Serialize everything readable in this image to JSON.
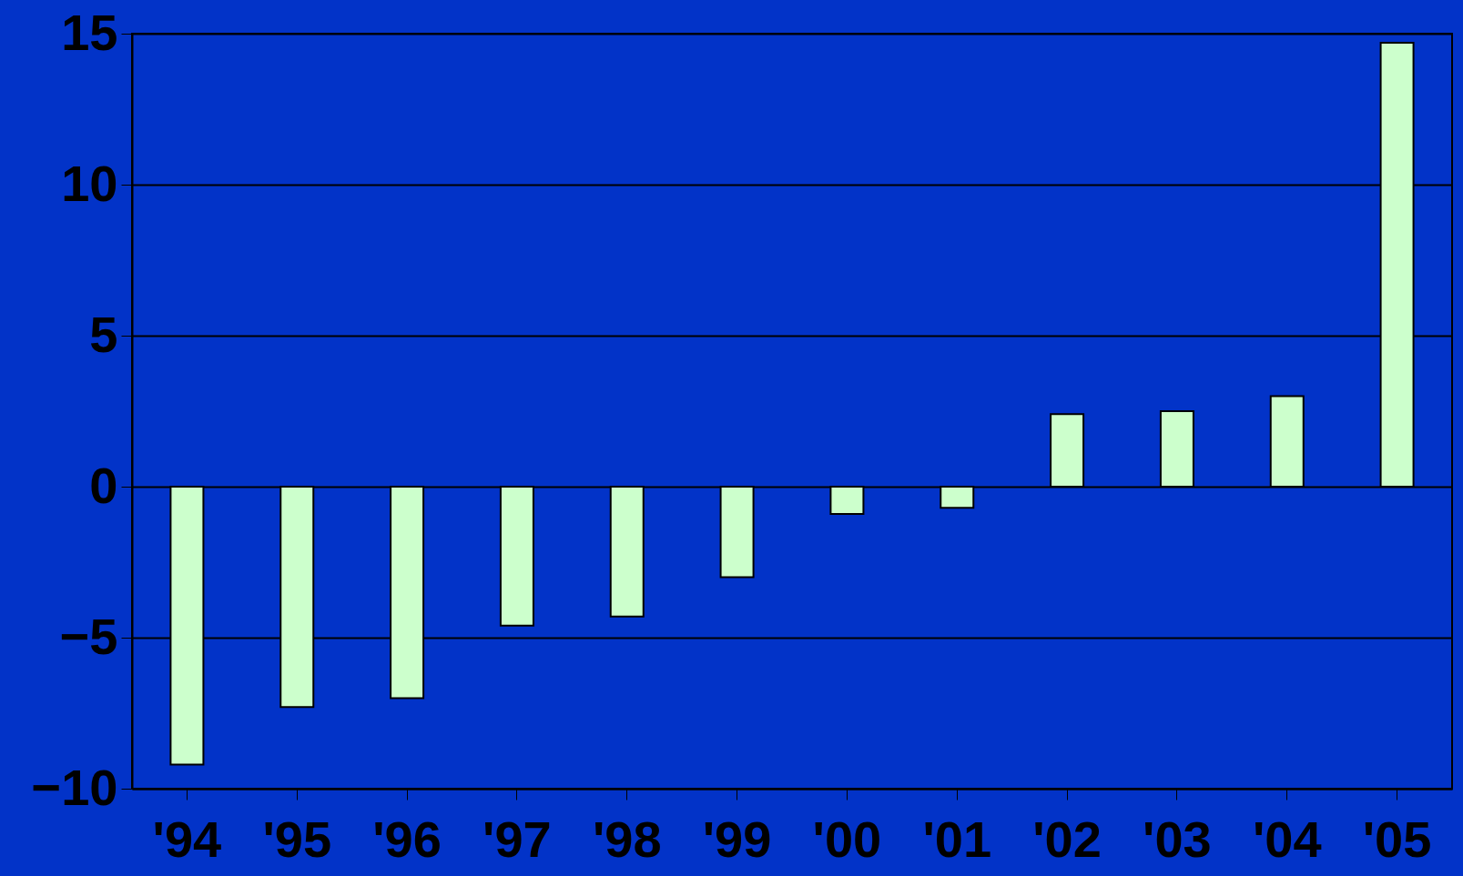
{
  "chart_data": {
    "type": "bar",
    "categories": [
      "'94",
      "'95",
      "'96",
      "'97",
      "'98",
      "'99",
      "'00",
      "'01",
      "'02",
      "'03",
      "'04",
      "'05"
    ],
    "values": [
      -9.2,
      -7.3,
      -7.0,
      -4.6,
      -4.3,
      -3.0,
      -0.9,
      -0.7,
      2.4,
      2.5,
      3.0,
      14.7
    ],
    "color": "#ccffcc",
    "ylim": [
      -10,
      15
    ],
    "yticks": [
      -10,
      -5,
      0,
      5,
      10,
      15
    ],
    "grid": "y"
  }
}
